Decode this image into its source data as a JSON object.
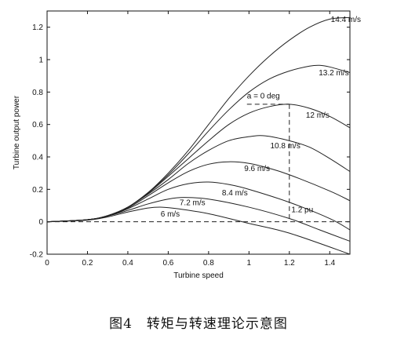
{
  "chart_data": {
    "type": "line",
    "xlabel": "Turbine speed",
    "ylabel": "Turbine output power",
    "xlim": [
      0,
      1.5
    ],
    "ylim": [
      -0.2,
      1.3
    ],
    "x_ticks": [
      "0",
      "0.2",
      "0.4",
      "0.6",
      "0.8",
      "1",
      "1.2",
      "1.4"
    ],
    "y_ticks": [
      "-0.2",
      "0",
      "0.2",
      "0.4",
      "0.6",
      "0.8",
      "1",
      "1.2"
    ],
    "grid": false,
    "series": [
      {
        "name": "6 m/s",
        "points": [
          [
            0,
            0
          ],
          [
            0.2,
            0.01
          ],
          [
            0.3,
            0.03
          ],
          [
            0.4,
            0.06
          ],
          [
            0.5,
            0.085
          ],
          [
            0.57,
            0.09
          ],
          [
            0.65,
            0.08
          ],
          [
            0.8,
            0.05
          ],
          [
            1.0,
            -0.01
          ],
          [
            1.2,
            -0.07
          ],
          [
            1.5,
            -0.2
          ]
        ]
      },
      {
        "name": "7.2 m/s",
        "points": [
          [
            0,
            0
          ],
          [
            0.2,
            0.012
          ],
          [
            0.3,
            0.035
          ],
          [
            0.4,
            0.07
          ],
          [
            0.5,
            0.11
          ],
          [
            0.6,
            0.14
          ],
          [
            0.68,
            0.15
          ],
          [
            0.8,
            0.14
          ],
          [
            1.0,
            0.09
          ],
          [
            1.2,
            0.02
          ],
          [
            1.35,
            -0.05
          ],
          [
            1.5,
            -0.12
          ]
        ]
      },
      {
        "name": "8.4 m/s",
        "points": [
          [
            0,
            0
          ],
          [
            0.2,
            0.013
          ],
          [
            0.3,
            0.035
          ],
          [
            0.4,
            0.08
          ],
          [
            0.5,
            0.14
          ],
          [
            0.6,
            0.2
          ],
          [
            0.7,
            0.235
          ],
          [
            0.8,
            0.245
          ],
          [
            0.9,
            0.23
          ],
          [
            1.0,
            0.2
          ],
          [
            1.2,
            0.12
          ],
          [
            1.4,
            0.02
          ],
          [
            1.5,
            -0.05
          ]
        ]
      },
      {
        "name": "9.6 m/s",
        "points": [
          [
            0,
            0
          ],
          [
            0.2,
            0.013
          ],
          [
            0.3,
            0.037
          ],
          [
            0.4,
            0.085
          ],
          [
            0.5,
            0.16
          ],
          [
            0.6,
            0.24
          ],
          [
            0.7,
            0.31
          ],
          [
            0.8,
            0.355
          ],
          [
            0.9,
            0.37
          ],
          [
            1.0,
            0.36
          ],
          [
            1.1,
            0.33
          ],
          [
            1.2,
            0.29
          ],
          [
            1.4,
            0.19
          ],
          [
            1.5,
            0.13
          ]
        ]
      },
      {
        "name": "10.8 m/s",
        "points": [
          [
            0,
            0
          ],
          [
            0.2,
            0.013
          ],
          [
            0.3,
            0.038
          ],
          [
            0.4,
            0.09
          ],
          [
            0.5,
            0.17
          ],
          [
            0.6,
            0.26
          ],
          [
            0.7,
            0.36
          ],
          [
            0.8,
            0.44
          ],
          [
            0.9,
            0.5
          ],
          [
            1.0,
            0.525
          ],
          [
            1.08,
            0.53
          ],
          [
            1.2,
            0.5
          ],
          [
            1.3,
            0.46
          ],
          [
            1.4,
            0.39
          ],
          [
            1.5,
            0.31
          ]
        ]
      },
      {
        "name": "12 m/s",
        "points": [
          [
            0,
            0
          ],
          [
            0.2,
            0.013
          ],
          [
            0.3,
            0.038
          ],
          [
            0.4,
            0.09
          ],
          [
            0.5,
            0.175
          ],
          [
            0.6,
            0.28
          ],
          [
            0.7,
            0.39
          ],
          [
            0.8,
            0.5
          ],
          [
            0.9,
            0.6
          ],
          [
            1.0,
            0.67
          ],
          [
            1.1,
            0.71
          ],
          [
            1.2,
            0.725
          ],
          [
            1.3,
            0.7
          ],
          [
            1.4,
            0.65
          ],
          [
            1.5,
            0.58
          ]
        ]
      },
      {
        "name": "13.2 m/s",
        "points": [
          [
            0,
            0
          ],
          [
            0.2,
            0.013
          ],
          [
            0.3,
            0.038
          ],
          [
            0.4,
            0.09
          ],
          [
            0.5,
            0.18
          ],
          [
            0.6,
            0.29
          ],
          [
            0.7,
            0.42
          ],
          [
            0.8,
            0.56
          ],
          [
            0.9,
            0.69
          ],
          [
            1.0,
            0.8
          ],
          [
            1.1,
            0.88
          ],
          [
            1.2,
            0.93
          ],
          [
            1.3,
            0.96
          ],
          [
            1.35,
            0.965
          ],
          [
            1.4,
            0.955
          ],
          [
            1.5,
            0.92
          ]
        ]
      },
      {
        "name": "14.4 m/s",
        "points": [
          [
            0,
            0
          ],
          [
            0.2,
            0.013
          ],
          [
            0.3,
            0.038
          ],
          [
            0.4,
            0.09
          ],
          [
            0.5,
            0.18
          ],
          [
            0.6,
            0.3
          ],
          [
            0.7,
            0.44
          ],
          [
            0.8,
            0.6
          ],
          [
            0.9,
            0.76
          ],
          [
            1.0,
            0.9
          ],
          [
            1.1,
            1.02
          ],
          [
            1.2,
            1.12
          ],
          [
            1.3,
            1.2
          ],
          [
            1.4,
            1.25
          ],
          [
            1.5,
            1.26
          ]
        ]
      }
    ],
    "reference_lines": [
      {
        "label": "a = 0 deg",
        "points": [
          [
            0.99,
            0.725
          ],
          [
            1.2,
            0.725
          ]
        ]
      },
      {
        "label": "1.2 pu",
        "points": [
          [
            1.2,
            0.725
          ],
          [
            1.2,
            0
          ]
        ]
      },
      {
        "label": "",
        "points": [
          [
            0,
            0
          ],
          [
            1.5,
            0
          ]
        ]
      }
    ]
  },
  "caption": "图4　转矩与转速理论示意图"
}
